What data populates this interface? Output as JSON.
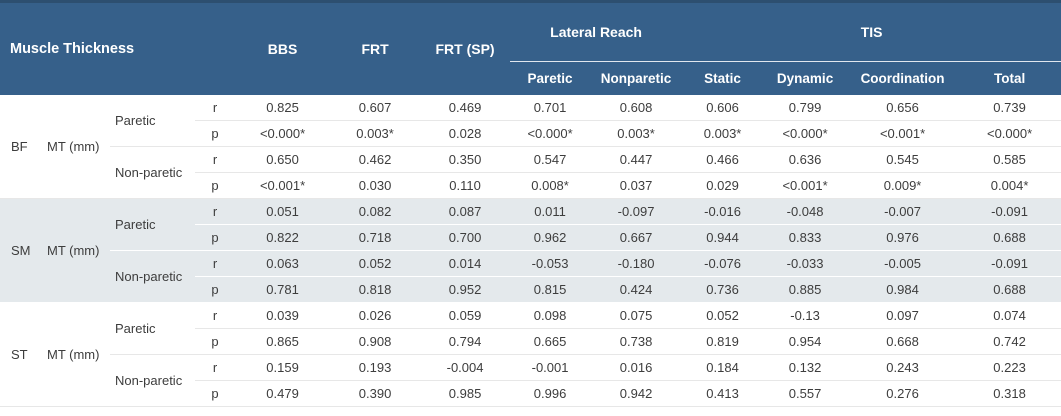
{
  "colors": {
    "header_bg": "#36608a",
    "header_text": "#ffffff",
    "shade_bg": "#e4e9ec",
    "data_text": "#3d3d3d",
    "top_border": "#2d4f70"
  },
  "table": {
    "header": {
      "muscle_thickness": "Muscle Thickness",
      "bbs": "BBS",
      "frt": "FRT",
      "frt_sp": "FRT (SP)",
      "lateral_reach": "Lateral Reach",
      "tis": "TIS",
      "sub": [
        "Paretic",
        "Nonparetic",
        "Static",
        "Dynamic",
        "Coordination",
        "Total"
      ]
    },
    "value_columns": [
      "BBS",
      "FRT",
      "FRT (SP)",
      "Lateral Reach Paretic",
      "Lateral Reach Nonparetic",
      "TIS Static",
      "TIS Dynamic",
      "TIS Coordination",
      "TIS Total"
    ],
    "sections": [
      {
        "muscle": "BF",
        "mt_label": "MT (mm)",
        "shaded": false,
        "groups": [
          {
            "side": "Paretic",
            "rows": [
              {
                "stat": "r",
                "values": [
                  "0.825",
                  "0.607",
                  "0.469",
                  "0.701",
                  "0.608",
                  "0.606",
                  "0.799",
                  "0.656",
                  "0.739"
                ]
              },
              {
                "stat": "p",
                "values": [
                  "<0.000*",
                  "0.003*",
                  "0.028",
                  "<0.000*",
                  "0.003*",
                  "0.003*",
                  "<0.000*",
                  "<0.001*",
                  "<0.000*"
                ]
              }
            ]
          },
          {
            "side": "Non-paretic",
            "rows": [
              {
                "stat": "r",
                "values": [
                  "0.650",
                  "0.462",
                  "0.350",
                  "0.547",
                  "0.447",
                  "0.466",
                  "0.636",
                  "0.545",
                  "0.585"
                ]
              },
              {
                "stat": "p",
                "values": [
                  "<0.001*",
                  "0.030",
                  "0.110",
                  "0.008*",
                  "0.037",
                  "0.029",
                  "<0.001*",
                  "0.009*",
                  "0.004*"
                ]
              }
            ]
          }
        ]
      },
      {
        "muscle": "SM",
        "mt_label": "MT (mm)",
        "shaded": true,
        "groups": [
          {
            "side": "Paretic",
            "rows": [
              {
                "stat": "r",
                "values": [
                  "0.051",
                  "0.082",
                  "0.087",
                  "0.011",
                  "-0.097",
                  "-0.016",
                  "-0.048",
                  "-0.007",
                  "-0.091"
                ]
              },
              {
                "stat": "p",
                "values": [
                  "0.822",
                  "0.718",
                  "0.700",
                  "0.962",
                  "0.667",
                  "0.944",
                  "0.833",
                  "0.976",
                  "0.688"
                ]
              }
            ]
          },
          {
            "side": "Non-paretic",
            "rows": [
              {
                "stat": "r",
                "values": [
                  "0.063",
                  "0.052",
                  "0.014",
                  "-0.053",
                  "-0.180",
                  "-0.076",
                  "-0.033",
                  "-0.005",
                  "-0.091"
                ]
              },
              {
                "stat": "p",
                "values": [
                  "0.781",
                  "0.818",
                  "0.952",
                  "0.815",
                  "0.424",
                  "0.736",
                  "0.885",
                  "0.984",
                  "0.688"
                ]
              }
            ]
          }
        ]
      },
      {
        "muscle": "ST",
        "mt_label": "MT (mm)",
        "shaded": false,
        "groups": [
          {
            "side": "Paretic",
            "rows": [
              {
                "stat": "r",
                "values": [
                  "0.039",
                  "0.026",
                  "0.059",
                  "0.098",
                  "0.075",
                  "0.052",
                  "-0.13",
                  "0.097",
                  "0.074"
                ]
              },
              {
                "stat": "p",
                "values": [
                  "0.865",
                  "0.908",
                  "0.794",
                  "0.665",
                  "0.738",
                  "0.819",
                  "0.954",
                  "0.668",
                  "0.742"
                ]
              }
            ]
          },
          {
            "side": "Non-paretic",
            "rows": [
              {
                "stat": "r",
                "values": [
                  "0.159",
                  "0.193",
                  "-0.004",
                  "-0.001",
                  "0.016",
                  "0.184",
                  "0.132",
                  "0.243",
                  "0.223"
                ]
              },
              {
                "stat": "p",
                "values": [
                  "0.479",
                  "0.390",
                  "0.985",
                  "0.996",
                  "0.942",
                  "0.413",
                  "0.557",
                  "0.276",
                  "0.318"
                ]
              }
            ]
          }
        ]
      }
    ]
  }
}
